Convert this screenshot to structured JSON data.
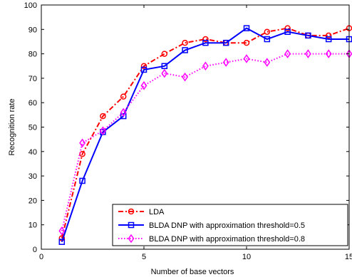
{
  "chart_data": {
    "type": "line",
    "title": "",
    "xlabel": "Number of base vectors",
    "ylabel": "Recognition rate",
    "xlim": [
      0,
      15
    ],
    "ylim": [
      0,
      100
    ],
    "xticks": [
      "0",
      "5",
      "10",
      "15"
    ],
    "yticks": [
      "0",
      "10",
      "20",
      "30",
      "40",
      "50",
      "60",
      "70",
      "80",
      "90",
      "100"
    ],
    "grid": false,
    "legend_position": "bottom-right",
    "x": [
      1,
      2,
      3,
      4,
      5,
      6,
      7,
      8,
      9,
      10,
      11,
      12,
      13,
      14,
      15
    ],
    "series": [
      {
        "name": "LDA",
        "color": "#ff0000",
        "line_style": "dashdot",
        "marker": "circle",
        "values": [
          4.5,
          39.0,
          54.5,
          62.5,
          75.0,
          80.0,
          84.5,
          86.0,
          84.5,
          84.5,
          89.0,
          90.5,
          87.5,
          87.5,
          90.5
        ]
      },
      {
        "name": "BLDA DNP with approximation threshold=0.5",
        "color": "#0000ff",
        "line_style": "solid",
        "marker": "square",
        "values": [
          3.0,
          28.0,
          48.0,
          54.5,
          73.5,
          75.0,
          81.5,
          84.5,
          84.5,
          90.5,
          86.0,
          89.0,
          87.5,
          86.0,
          86.0
        ]
      },
      {
        "name": "BLDA DNP with approximation threshold=0.8",
        "color": "#ff00ff",
        "line_style": "dotted",
        "marker": "diamond",
        "values": [
          7.5,
          43.5,
          48.5,
          56.0,
          67.0,
          72.0,
          70.5,
          75.0,
          76.5,
          78.0,
          76.5,
          80.0,
          80.0,
          80.0,
          80.0
        ]
      }
    ]
  }
}
